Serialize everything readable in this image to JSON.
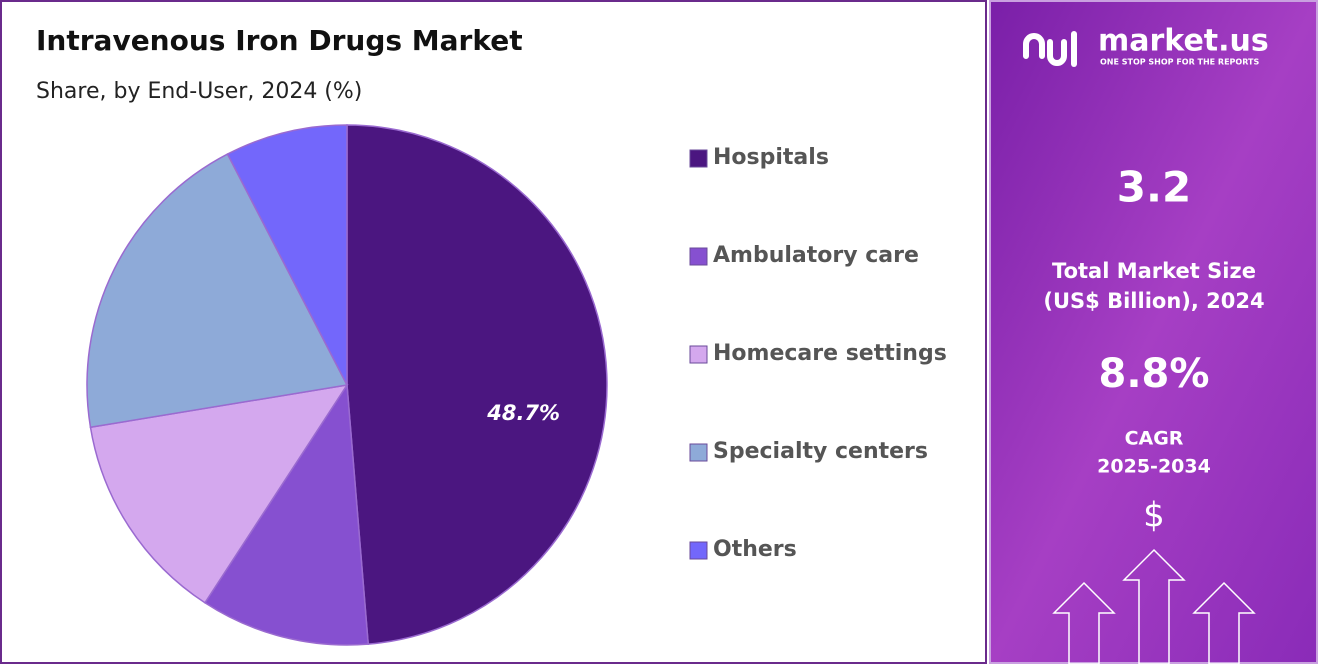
{
  "chart_data": {
    "type": "pie",
    "title": "Intravenous Iron Drugs Market",
    "subtitle": "Share, by End-User, 2024 (%)",
    "categories": [
      "Hospitals",
      "Ambulatory care",
      "Homecare settings",
      "Specialty centers",
      "Others"
    ],
    "values": [
      48.7,
      10.5,
      13.2,
      20.0,
      7.6
    ],
    "value_labels": [
      "48.7%",
      null,
      null,
      null,
      null
    ],
    "colors": [
      "#4b1680",
      "#8650d0",
      "#d4a8ee",
      "#8eaad8",
      "#7367fb"
    ]
  },
  "panel": {
    "brand": "market.us",
    "tagline": "ONE STOP SHOP FOR THE REPORTS",
    "market_size": "3.2",
    "market_size_label": [
      "Total Market Size",
      "(US$ Billion), 2024"
    ],
    "cagr": "8.8%",
    "cagr_label": [
      "CAGR",
      "2025-2034"
    ],
    "currency": "$"
  }
}
